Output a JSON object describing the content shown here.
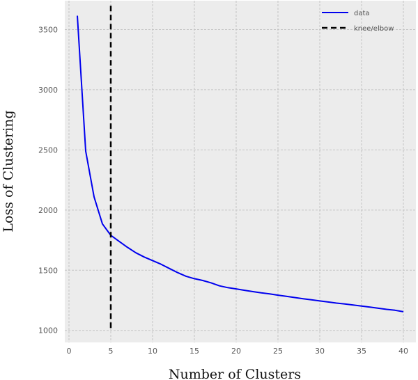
{
  "chart_data": {
    "type": "line",
    "title": "",
    "xlabel": "Number of Clusters",
    "ylabel": "Loss of Clustering",
    "xlim": [
      -0.5,
      41.5
    ],
    "ylim": [
      900,
      3740
    ],
    "xticks": [
      0,
      5,
      10,
      15,
      20,
      25,
      30,
      35,
      40
    ],
    "yticks": [
      1000,
      1500,
      2000,
      2500,
      3000,
      3500
    ],
    "grid": true,
    "legend_position": "top-right",
    "series": [
      {
        "name": "data",
        "color": "#0000ee",
        "style": "solid",
        "x": [
          1,
          2,
          3,
          4,
          5,
          6,
          7,
          8,
          9,
          10,
          11,
          12,
          13,
          14,
          15,
          16,
          17,
          18,
          19,
          20,
          21,
          22,
          23,
          24,
          25,
          26,
          27,
          28,
          29,
          30,
          31,
          32,
          33,
          34,
          35,
          36,
          37,
          38,
          39,
          40
        ],
        "y": [
          3615,
          2490,
          2110,
          1885,
          1790,
          1740,
          1690,
          1645,
          1610,
          1580,
          1550,
          1515,
          1480,
          1450,
          1430,
          1415,
          1395,
          1370,
          1355,
          1345,
          1333,
          1322,
          1312,
          1303,
          1293,
          1283,
          1273,
          1263,
          1254,
          1245,
          1236,
          1227,
          1219,
          1211,
          1202,
          1193,
          1184,
          1175,
          1167,
          1155
        ]
      },
      {
        "name": "knee/elbow",
        "color": "#000000",
        "style": "dashed",
        "x": [
          5,
          5
        ],
        "y": [
          1020,
          3720
        ]
      }
    ]
  }
}
